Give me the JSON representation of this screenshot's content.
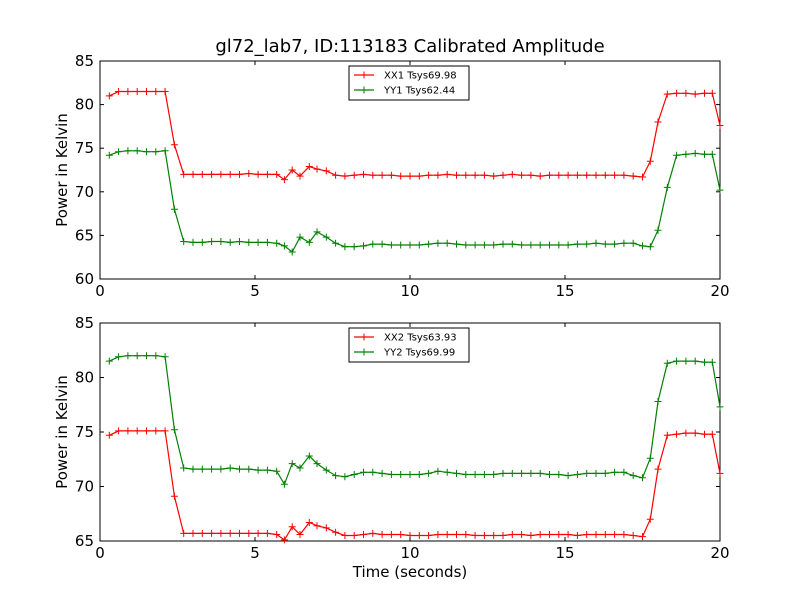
{
  "title": "gl72_lab7, ID:113183 Calibrated Amplitude",
  "chart_data": [
    {
      "type": "line",
      "xlabel": "",
      "ylabel": "Power in Kelvin",
      "xlim": [
        0,
        20
      ],
      "ylim": [
        60,
        85
      ],
      "xticks": [
        0,
        5,
        10,
        15,
        20
      ],
      "yticks": [
        60,
        65,
        70,
        75,
        80,
        85
      ],
      "legend_position": "top-center",
      "grid": false,
      "series": [
        {
          "name": "XX1 Tsys69.98",
          "color": "#ff0000",
          "x": [
            0.3,
            0.6,
            0.9,
            1.2,
            1.5,
            1.8,
            2.1,
            2.4,
            2.7,
            3.0,
            3.3,
            3.6,
            3.9,
            4.2,
            4.5,
            4.8,
            5.1,
            5.4,
            5.7,
            5.95,
            6.2,
            6.45,
            6.75,
            7.0,
            7.3,
            7.6,
            7.9,
            8.2,
            8.5,
            8.8,
            9.1,
            9.4,
            9.7,
            10.0,
            10.3,
            10.6,
            10.9,
            11.2,
            11.5,
            11.8,
            12.1,
            12.4,
            12.7,
            13.0,
            13.3,
            13.6,
            13.9,
            14.2,
            14.5,
            14.8,
            15.1,
            15.4,
            15.7,
            16.0,
            16.3,
            16.6,
            16.9,
            17.2,
            17.5,
            17.75,
            18.0,
            18.3,
            18.6,
            18.9,
            19.2,
            19.5,
            19.75,
            20.0
          ],
          "y": [
            81.0,
            81.5,
            81.5,
            81.5,
            81.5,
            81.5,
            81.5,
            75.4,
            72.0,
            72.0,
            72.0,
            72.0,
            72.0,
            72.0,
            72.0,
            72.1,
            72.0,
            72.0,
            72.0,
            71.4,
            72.5,
            71.8,
            72.9,
            72.6,
            72.4,
            71.9,
            71.8,
            71.9,
            72.0,
            71.9,
            71.9,
            71.9,
            71.8,
            71.8,
            71.8,
            71.9,
            71.9,
            72.0,
            71.9,
            71.9,
            71.9,
            71.9,
            71.8,
            71.9,
            72.0,
            71.9,
            71.9,
            71.8,
            71.9,
            71.9,
            71.9,
            71.9,
            71.9,
            71.9,
            71.9,
            71.9,
            71.9,
            71.8,
            71.7,
            73.5,
            78.0,
            81.2,
            81.3,
            81.3,
            81.2,
            81.3,
            81.3,
            77.6
          ]
        },
        {
          "name": "YY1 Tsys62.44",
          "color": "#008000",
          "x": [
            0.3,
            0.6,
            0.9,
            1.2,
            1.5,
            1.8,
            2.1,
            2.4,
            2.7,
            3.0,
            3.3,
            3.6,
            3.9,
            4.2,
            4.5,
            4.8,
            5.1,
            5.4,
            5.7,
            5.95,
            6.2,
            6.45,
            6.75,
            7.0,
            7.3,
            7.6,
            7.9,
            8.2,
            8.5,
            8.8,
            9.1,
            9.4,
            9.7,
            10.0,
            10.3,
            10.6,
            10.9,
            11.2,
            11.5,
            11.8,
            12.1,
            12.4,
            12.7,
            13.0,
            13.3,
            13.6,
            13.9,
            14.2,
            14.5,
            14.8,
            15.1,
            15.4,
            15.7,
            16.0,
            16.3,
            16.6,
            16.9,
            17.2,
            17.5,
            17.75,
            18.0,
            18.3,
            18.6,
            18.9,
            19.2,
            19.5,
            19.75,
            20.0
          ],
          "y": [
            74.2,
            74.6,
            74.7,
            74.7,
            74.6,
            74.6,
            74.7,
            68.0,
            64.3,
            64.2,
            64.2,
            64.3,
            64.3,
            64.2,
            64.3,
            64.2,
            64.2,
            64.2,
            64.1,
            63.8,
            63.1,
            64.8,
            64.2,
            65.4,
            64.8,
            64.1,
            63.7,
            63.7,
            63.8,
            64.0,
            64.0,
            63.9,
            63.9,
            63.9,
            63.9,
            64.0,
            64.1,
            64.1,
            64.0,
            63.9,
            63.9,
            63.9,
            63.9,
            64.0,
            64.0,
            63.9,
            63.9,
            63.9,
            63.9,
            63.9,
            63.9,
            64.0,
            64.0,
            64.1,
            64.0,
            64.0,
            64.1,
            64.1,
            63.8,
            63.7,
            65.6,
            70.5,
            74.2,
            74.3,
            74.4,
            74.3,
            74.3,
            70.2
          ]
        }
      ]
    },
    {
      "type": "line",
      "xlabel": "Time (seconds)",
      "ylabel": "Power in Kelvin",
      "xlim": [
        0,
        20
      ],
      "ylim": [
        65,
        85
      ],
      "xticks": [
        0,
        5,
        10,
        15,
        20
      ],
      "yticks": [
        65,
        70,
        75,
        80,
        85
      ],
      "legend_position": "top-center",
      "grid": false,
      "series": [
        {
          "name": "XX2 Tsys63.93",
          "color": "#ff0000",
          "x": [
            0.3,
            0.6,
            0.9,
            1.2,
            1.5,
            1.8,
            2.1,
            2.4,
            2.7,
            3.0,
            3.3,
            3.6,
            3.9,
            4.2,
            4.5,
            4.8,
            5.1,
            5.4,
            5.7,
            5.95,
            6.2,
            6.45,
            6.75,
            7.0,
            7.3,
            7.6,
            7.9,
            8.2,
            8.5,
            8.8,
            9.1,
            9.4,
            9.7,
            10.0,
            10.3,
            10.6,
            10.9,
            11.2,
            11.5,
            11.8,
            12.1,
            12.4,
            12.7,
            13.0,
            13.3,
            13.6,
            13.9,
            14.2,
            14.5,
            14.8,
            15.1,
            15.4,
            15.7,
            16.0,
            16.3,
            16.6,
            16.9,
            17.2,
            17.5,
            17.75,
            18.0,
            18.3,
            18.6,
            18.9,
            19.2,
            19.5,
            19.75,
            20.0
          ],
          "y": [
            74.7,
            75.1,
            75.1,
            75.1,
            75.1,
            75.1,
            75.1,
            69.1,
            65.7,
            65.7,
            65.7,
            65.7,
            65.7,
            65.7,
            65.7,
            65.7,
            65.7,
            65.7,
            65.6,
            65.1,
            66.3,
            65.6,
            66.7,
            66.4,
            66.2,
            65.8,
            65.5,
            65.5,
            65.6,
            65.7,
            65.6,
            65.6,
            65.6,
            65.5,
            65.5,
            65.5,
            65.6,
            65.6,
            65.6,
            65.6,
            65.5,
            65.5,
            65.5,
            65.5,
            65.6,
            65.6,
            65.5,
            65.6,
            65.6,
            65.6,
            65.6,
            65.5,
            65.6,
            65.6,
            65.6,
            65.6,
            65.6,
            65.5,
            65.4,
            67.0,
            71.6,
            74.7,
            74.8,
            74.9,
            74.9,
            74.8,
            74.8,
            71.2
          ]
        },
        {
          "name": "YY2 Tsys69.99",
          "color": "#008000",
          "x": [
            0.3,
            0.6,
            0.9,
            1.2,
            1.5,
            1.8,
            2.1,
            2.4,
            2.7,
            3.0,
            3.3,
            3.6,
            3.9,
            4.2,
            4.5,
            4.8,
            5.1,
            5.4,
            5.7,
            5.95,
            6.2,
            6.45,
            6.75,
            7.0,
            7.3,
            7.6,
            7.9,
            8.2,
            8.5,
            8.8,
            9.1,
            9.4,
            9.7,
            10.0,
            10.3,
            10.6,
            10.9,
            11.2,
            11.5,
            11.8,
            12.1,
            12.4,
            12.7,
            13.0,
            13.3,
            13.6,
            13.9,
            14.2,
            14.5,
            14.8,
            15.1,
            15.4,
            15.7,
            16.0,
            16.3,
            16.6,
            16.9,
            17.2,
            17.5,
            17.75,
            18.0,
            18.3,
            18.6,
            18.9,
            19.2,
            19.5,
            19.75,
            20.0
          ],
          "y": [
            81.5,
            81.9,
            82.0,
            82.0,
            82.0,
            82.0,
            81.9,
            75.2,
            71.7,
            71.6,
            71.6,
            71.6,
            71.6,
            71.7,
            71.6,
            71.6,
            71.5,
            71.5,
            71.4,
            70.2,
            72.1,
            71.7,
            72.8,
            72.1,
            71.5,
            71.0,
            70.9,
            71.1,
            71.3,
            71.3,
            71.2,
            71.1,
            71.1,
            71.1,
            71.1,
            71.2,
            71.4,
            71.3,
            71.2,
            71.1,
            71.1,
            71.1,
            71.1,
            71.2,
            71.2,
            71.2,
            71.2,
            71.2,
            71.1,
            71.1,
            71.0,
            71.1,
            71.2,
            71.2,
            71.2,
            71.3,
            71.3,
            71.0,
            70.8,
            72.6,
            77.8,
            81.3,
            81.5,
            81.5,
            81.5,
            81.4,
            81.4,
            77.3
          ]
        }
      ]
    }
  ]
}
